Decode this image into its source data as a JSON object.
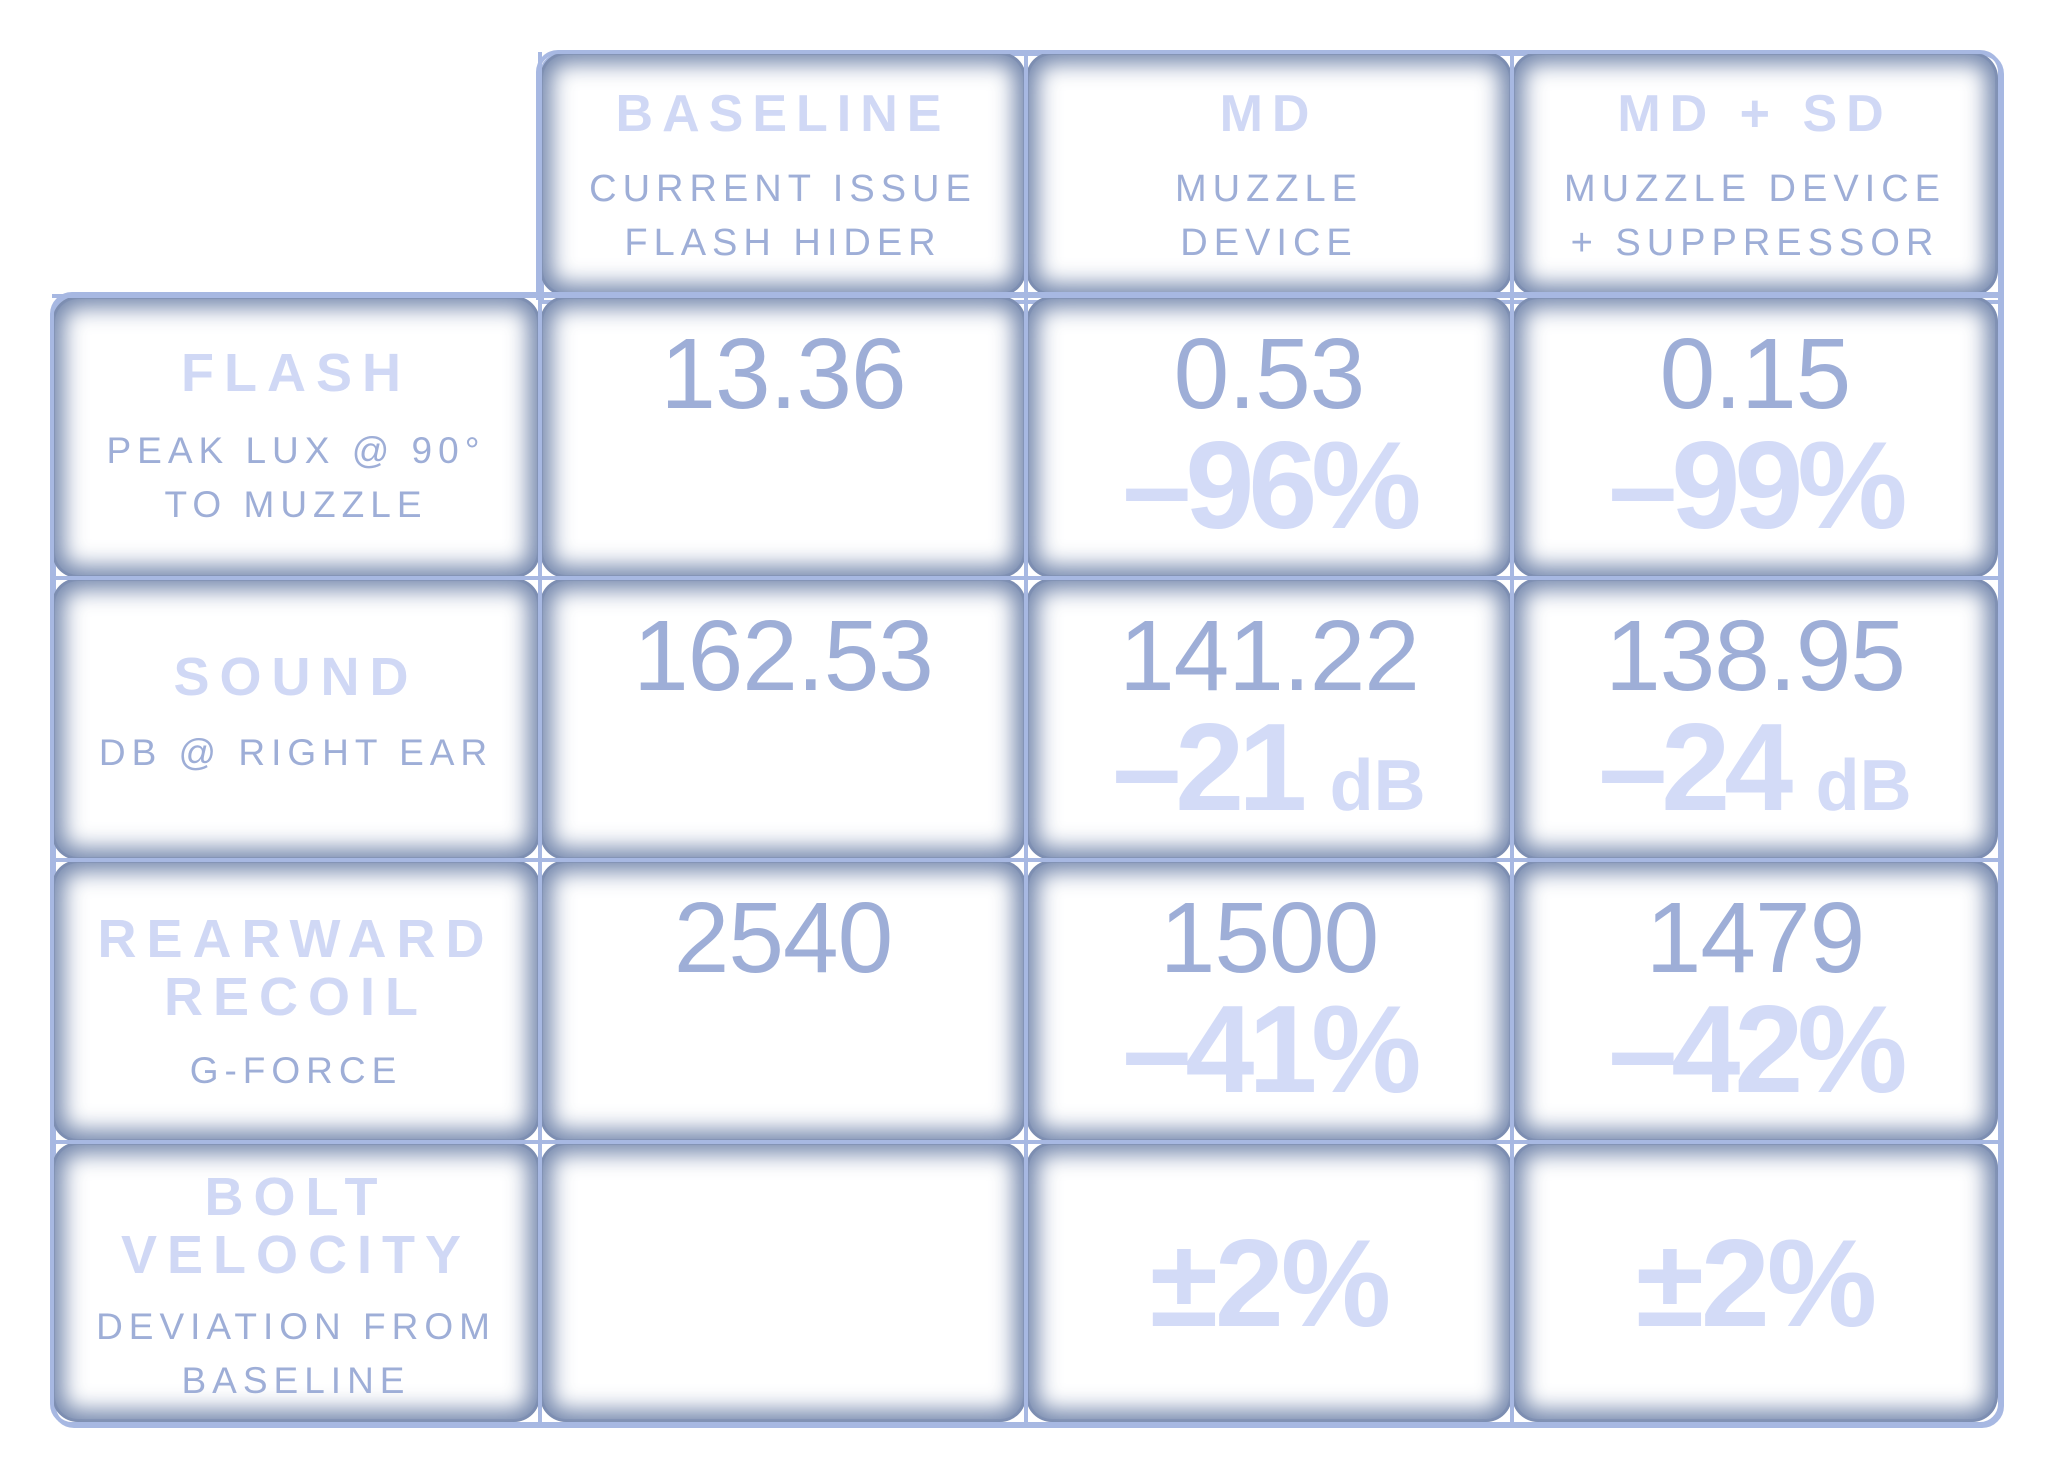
{
  "columns": [
    {
      "title": "BASELINE",
      "sub1": "CURRENT ISSUE",
      "sub2": "FLASH HIDER"
    },
    {
      "title": "MD",
      "sub1": "MUZZLE",
      "sub2": "DEVICE"
    },
    {
      "title": "MD + SD",
      "sub1": "MUZZLE DEVICE",
      "sub2": "+ SUPPRESSOR"
    }
  ],
  "rows": [
    {
      "title1": "FLASH",
      "title2": "",
      "sub1": "PEAK LUX @ 90°",
      "sub2": "TO MUZZLE",
      "baseline": "13.36",
      "md": {
        "value": "0.53",
        "change": "–96%",
        "unit": ""
      },
      "mdsd": {
        "value": "0.15",
        "change": "–99%",
        "unit": ""
      }
    },
    {
      "title1": "SOUND",
      "title2": "",
      "sub1": "DB @ RIGHT EAR",
      "sub2": "",
      "baseline": "162.53",
      "md": {
        "value": "141.22",
        "change": "–21",
        "unit": "dB"
      },
      "mdsd": {
        "value": "138.95",
        "change": "–24",
        "unit": "dB"
      }
    },
    {
      "title1": "REARWARD",
      "title2": "RECOIL",
      "sub1": "G-FORCE",
      "sub2": "",
      "baseline": "2540",
      "md": {
        "value": "1500",
        "change": "–41%",
        "unit": ""
      },
      "mdsd": {
        "value": "1479",
        "change": "–42%",
        "unit": ""
      }
    },
    {
      "title1": "BOLT",
      "title2": "VELOCITY",
      "sub1": "DEVIATION FROM",
      "sub2": "BASELINE",
      "baseline": "",
      "md": {
        "value": "",
        "change": "±2%",
        "unit": ""
      },
      "mdsd": {
        "value": "",
        "change": "±2%",
        "unit": ""
      }
    }
  ],
  "colors": {
    "cell_shadow": "#5e74a0",
    "grid_line": "#a7b8e2",
    "heading_text": "#d0d8f5",
    "label_text": "#9eaed7",
    "value_text": "#9eaed7",
    "change_text": "#d3dbf7"
  }
}
